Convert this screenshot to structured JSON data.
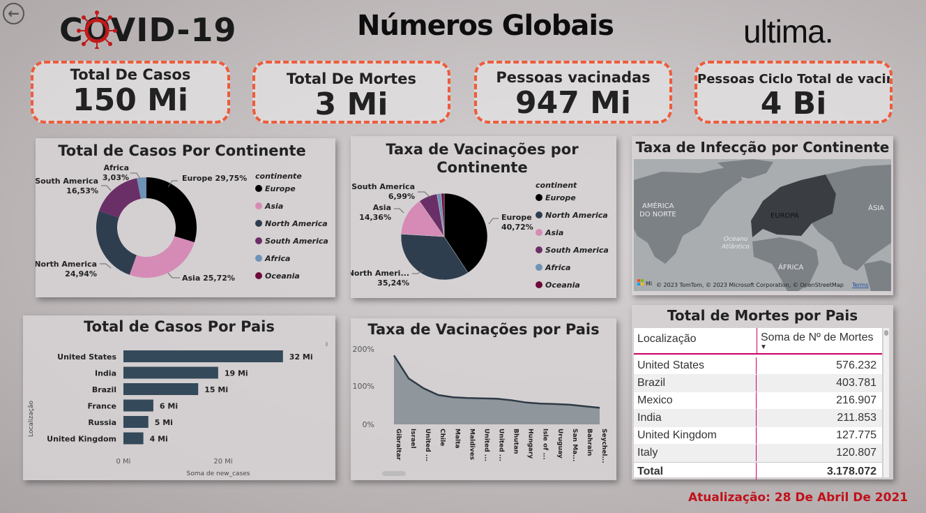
{
  "header": {
    "back_label": "←",
    "covid_logo": "COVID-19",
    "title": "Números Globais",
    "brand_logo": "ultima."
  },
  "kpis": [
    {
      "label": "Total De Casos",
      "value": "150 Mi"
    },
    {
      "label": "Total De Mortes",
      "value": "3 Mi"
    },
    {
      "label": "Pessoas vacinadas",
      "value": "947 Mi"
    },
    {
      "label": "Pessoas Ciclo Total de vacinas",
      "value": "4 Bi"
    }
  ],
  "donut": {
    "title": "Total de Casos Por Continente",
    "legend_title": "continente",
    "slices": [
      {
        "name": "Europe",
        "pct": 29.75,
        "label": "Europe 29,75%",
        "color": "#000000"
      },
      {
        "name": "Asia",
        "pct": 25.72,
        "label": "Asia 25,72%",
        "color": "#d58bb6"
      },
      {
        "name": "North America",
        "pct": 24.94,
        "label_line1": "North America",
        "label_line2": "24,94%",
        "color": "#2f3e4f"
      },
      {
        "name": "South America",
        "pct": 16.53,
        "label_line1": "South America",
        "label_line2": "16,53%",
        "color": "#6b2f68"
      },
      {
        "name": "Africa",
        "pct": 3.03,
        "label_line1": "Africa",
        "label_line2": "3,03%",
        "color": "#6d93b8"
      },
      {
        "name": "Oceania",
        "pct": 0.03,
        "color": "#6e0a3a"
      }
    ],
    "legend": [
      "Europe",
      "Asia",
      "North America",
      "South America",
      "Africa",
      "Oceania"
    ]
  },
  "pie": {
    "title_line1": "Taxa de Vacinações por",
    "title_line2": "Continente",
    "legend_title": "continent",
    "slices": [
      {
        "name": "Europe",
        "pct": 40.72,
        "label_line1": "Europe",
        "label_line2": "40,72%",
        "color": "#000000"
      },
      {
        "name": "North America",
        "pct": 35.24,
        "label_line1": "North Ameri...",
        "label_line2": "35,24%",
        "color": "#2f3e4f"
      },
      {
        "name": "Asia",
        "pct": 14.36,
        "label_line1": "Asia",
        "label_line2": "14,36%",
        "color": "#d58bb6"
      },
      {
        "name": "South America",
        "pct": 6.99,
        "label_line1": "South America",
        "label_line2": "6,99%",
        "color": "#6b2f68"
      },
      {
        "name": "Africa",
        "pct": 1.6,
        "color": "#6d93b8"
      },
      {
        "name": "Oceania",
        "pct": 1.09,
        "color": "#6e0a3a"
      }
    ],
    "legend": [
      "Europe",
      "North America",
      "Asia",
      "South America",
      "Africa",
      "Oceania"
    ]
  },
  "map": {
    "title": "Taxa de Infecção por Continente",
    "labels": {
      "na": "AMÉRICA\nDO NORTE",
      "europe": "EUROPA",
      "asia": "ÁSIA",
      "ocean": "Oceano\nAtlântico",
      "africa": "ÁFRICA"
    },
    "na_line1": "AMÉRICA",
    "na_line2": "DO NORTE",
    "europe": "EUROPA",
    "asia": "ÁSIA",
    "ocean_line1": "Oceano",
    "ocean_line2": "Atlântico",
    "africa": "ÁFRICA",
    "attribution": "© 2023 TomTom, © 2023 Microsoft Corporation, © OpenStreetMap",
    "terms": "Terms",
    "ms_logo": "Mi"
  },
  "bars": {
    "title": "Total de Casos Por Pais",
    "ylabel": "Localização",
    "xlabel": "Soma de new_cases",
    "xticks": [
      "0 Mi",
      "20 Mi"
    ],
    "countries": [
      "United States",
      "India",
      "Brazil",
      "France",
      "Russia",
      "United Kingdom"
    ],
    "labels": [
      "32 Mi",
      "19 Mi",
      "15 Mi",
      "6 Mi",
      "5 Mi",
      "4 Mi"
    ],
    "values": [
      32,
      19,
      15,
      6,
      5,
      4
    ],
    "color": "#34495a"
  },
  "area": {
    "title": "Taxa de Vacinações por Pais",
    "yticks": [
      "200%",
      "100%",
      "0%"
    ],
    "countries": [
      "Gibraltar",
      "Israel",
      "United ...",
      "Chile",
      "Malta",
      "Maldives",
      "United ...",
      "United ...",
      "Bhutan",
      "Hungary",
      "Isle of ...",
      "Uruguay",
      "San Ma...",
      "Bahrain",
      "Seychel..."
    ],
    "values": [
      183,
      122,
      96,
      78,
      72,
      70,
      69,
      68,
      64,
      58,
      55,
      54,
      52,
      48,
      44
    ]
  },
  "deaths_table": {
    "title": "Total de Mortes por Pais",
    "col1": "Localização",
    "col2": "Soma de Nº de Mortes",
    "rows": [
      {
        "country": "United States",
        "value": "576.232"
      },
      {
        "country": "Brazil",
        "value": "403.781"
      },
      {
        "country": "Mexico",
        "value": "216.907"
      },
      {
        "country": "India",
        "value": "211.853"
      },
      {
        "country": "United Kingdom",
        "value": "127.775"
      },
      {
        "country": "Italy",
        "value": "120.807"
      }
    ],
    "total_label": "Total",
    "total_value": "3.178.072"
  },
  "footer": {
    "update_label": "Atualização:",
    "update_date": "28 De Abril De 2021"
  }
}
